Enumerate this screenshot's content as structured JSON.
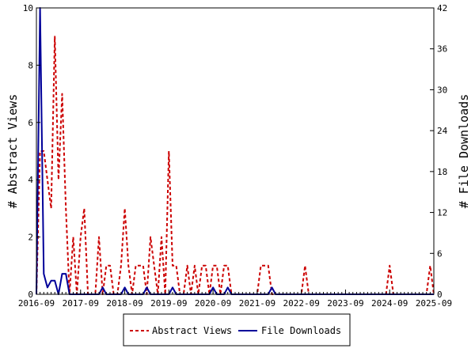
{
  "chart_data": {
    "type": "line",
    "xlabel": "",
    "left_ylabel": "# Abstract Views",
    "right_ylabel": "# File Downloads",
    "x_ticks": [
      "2016-09",
      "2017-09",
      "2018-09",
      "2019-09",
      "2020-09",
      "2021-09",
      "2022-09",
      "2023-09",
      "2024-09",
      "2025-09"
    ],
    "x_range": [
      "2016-09",
      "2025-09"
    ],
    "left_ylim": [
      0,
      10
    ],
    "right_ylim": [
      0,
      42
    ],
    "left_ticks": [
      0,
      2,
      4,
      6,
      8,
      10
    ],
    "right_ticks": [
      0,
      6,
      12,
      18,
      24,
      30,
      36,
      42
    ],
    "grid": false,
    "legend_position": "bottom-center",
    "series": [
      {
        "name": "Abstract Views",
        "axis": "left",
        "color": "#cc0000",
        "style": "dashed",
        "points": [
          [
            "2016-09",
            0
          ],
          [
            "2016-10",
            5
          ],
          [
            "2016-11",
            5
          ],
          [
            "2016-12",
            4
          ],
          [
            "2017-01",
            3
          ],
          [
            "2017-02",
            9
          ],
          [
            "2017-03",
            4
          ],
          [
            "2017-04",
            7
          ],
          [
            "2017-05",
            3
          ],
          [
            "2017-06",
            0
          ],
          [
            "2017-07",
            2
          ],
          [
            "2017-08",
            0
          ],
          [
            "2017-09",
            2
          ],
          [
            "2017-10",
            3
          ],
          [
            "2017-11",
            0
          ],
          [
            "2017-12",
            0
          ],
          [
            "2018-01",
            0
          ],
          [
            "2018-02",
            2
          ],
          [
            "2018-03",
            0
          ],
          [
            "2018-04",
            1
          ],
          [
            "2018-05",
            1
          ],
          [
            "2018-06",
            0
          ],
          [
            "2018-07",
            0
          ],
          [
            "2018-08",
            1
          ],
          [
            "2018-09",
            3
          ],
          [
            "2018-10",
            1
          ],
          [
            "2018-11",
            0
          ],
          [
            "2018-12",
            1
          ],
          [
            "2019-01",
            1
          ],
          [
            "2019-02",
            1
          ],
          [
            "2019-03",
            0
          ],
          [
            "2019-04",
            2
          ],
          [
            "2019-05",
            1
          ],
          [
            "2019-06",
            0
          ],
          [
            "2019-07",
            2
          ],
          [
            "2019-08",
            0
          ],
          [
            "2019-09",
            5
          ],
          [
            "2019-10",
            1
          ],
          [
            "2019-11",
            1
          ],
          [
            "2019-12",
            0
          ],
          [
            "2020-01",
            0
          ],
          [
            "2020-02",
            1
          ],
          [
            "2020-03",
            0
          ],
          [
            "2020-04",
            1
          ],
          [
            "2020-05",
            0
          ],
          [
            "2020-06",
            1
          ],
          [
            "2020-07",
            1
          ],
          [
            "2020-08",
            0
          ],
          [
            "2020-09",
            1
          ],
          [
            "2020-10",
            1
          ],
          [
            "2020-11",
            0
          ],
          [
            "2020-12",
            1
          ],
          [
            "2021-01",
            1
          ],
          [
            "2021-02",
            0
          ],
          [
            "2021-09",
            0
          ],
          [
            "2021-10",
            1
          ],
          [
            "2021-11",
            1
          ],
          [
            "2021-12",
            1
          ],
          [
            "2022-01",
            0
          ],
          [
            "2022-09",
            0
          ],
          [
            "2022-10",
            1
          ],
          [
            "2022-11",
            0
          ],
          [
            "2024-08",
            0
          ],
          [
            "2024-09",
            1
          ],
          [
            "2024-10",
            0
          ],
          [
            "2025-07",
            0
          ],
          [
            "2025-08",
            1
          ],
          [
            "2025-09",
            0
          ]
        ]
      },
      {
        "name": "File Downloads",
        "axis": "right",
        "color": "#000099",
        "style": "solid",
        "points": [
          [
            "2016-09",
            0
          ],
          [
            "2016-10",
            42
          ],
          [
            "2016-11",
            3
          ],
          [
            "2016-12",
            1
          ],
          [
            "2017-01",
            2
          ],
          [
            "2017-02",
            2
          ],
          [
            "2017-03",
            0
          ],
          [
            "2017-04",
            3
          ],
          [
            "2017-05",
            3
          ],
          [
            "2017-06",
            0
          ],
          [
            "2018-02",
            0
          ],
          [
            "2018-03",
            1
          ],
          [
            "2018-04",
            0
          ],
          [
            "2018-08",
            0
          ],
          [
            "2018-09",
            1
          ],
          [
            "2018-10",
            0
          ],
          [
            "2019-02",
            0
          ],
          [
            "2019-03",
            1
          ],
          [
            "2019-04",
            0
          ],
          [
            "2019-09",
            0
          ],
          [
            "2019-10",
            1
          ],
          [
            "2019-11",
            0
          ],
          [
            "2020-08",
            0
          ],
          [
            "2020-09",
            1
          ],
          [
            "2020-10",
            0
          ],
          [
            "2020-12",
            0
          ],
          [
            "2021-01",
            1
          ],
          [
            "2021-02",
            0
          ],
          [
            "2021-12",
            0
          ],
          [
            "2022-01",
            1
          ],
          [
            "2022-02",
            0
          ],
          [
            "2025-09",
            0
          ]
        ]
      }
    ]
  }
}
